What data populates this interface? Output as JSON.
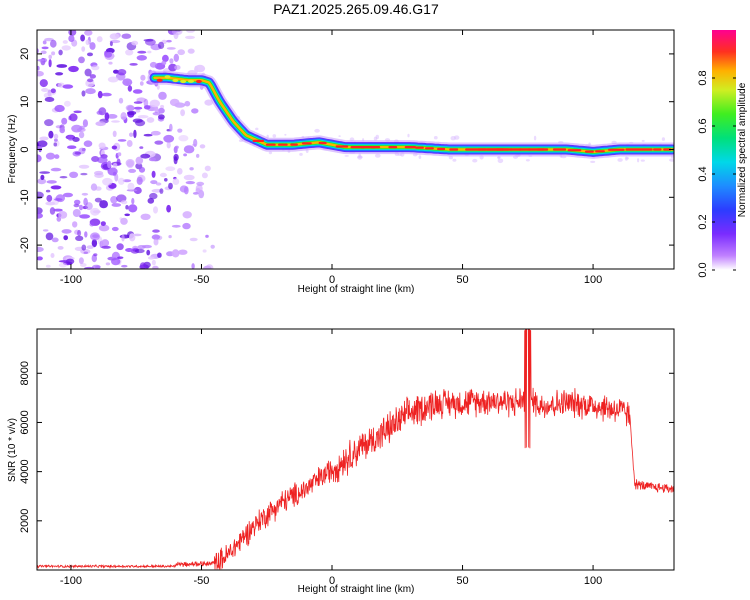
{
  "title": "PAZ1.2025.265.09.46.G17",
  "colors": {
    "snr_line": "#ee2222",
    "colormap": [
      "#ffffff",
      "#9b30ff",
      "#3a2cff",
      "#1e6bff",
      "#00c8ff",
      "#00e0a0",
      "#22ee22",
      "#d8ee22",
      "#ffaa00",
      "#ff2222",
      "#ff0090"
    ]
  },
  "chart_data": [
    {
      "type": "heatmap",
      "xlabel": "Height of straight line (km)",
      "ylabel": "Frequency (Hz)",
      "xlim": [
        -113,
        131
      ],
      "ylim": [
        -25,
        25
      ],
      "xticks": [
        -100,
        -50,
        0,
        50,
        100
      ],
      "yticks": [
        -20,
        -10,
        0,
        10,
        20
      ],
      "colorbar": {
        "label": "Normalized spectral amplitude",
        "range": [
          0,
          1
        ],
        "ticks": [
          0.0,
          0.2,
          0.4,
          0.6,
          0.8
        ]
      },
      "ridge": {
        "x": [
          -68,
          -63,
          -55,
          -50,
          -47,
          -43,
          -38,
          -33,
          -29,
          -25,
          -15,
          -5,
          5,
          15,
          30,
          45,
          60,
          75,
          90,
          100,
          110,
          120,
          131
        ],
        "y": [
          15,
          15,
          14.5,
          14.5,
          14,
          10,
          6,
          3,
          2,
          1,
          1,
          1.5,
          0.5,
          0.5,
          0.5,
          0,
          0,
          0,
          0,
          -0.5,
          0,
          0,
          0
        ]
      },
      "noise_region_x": [
        -113,
        -45
      ]
    },
    {
      "type": "line",
      "xlabel": "Height of straight line (km)",
      "ylabel": "SNR (10 * v/v)",
      "xlim": [
        -113,
        131
      ],
      "ylim": [
        0,
        9800
      ],
      "xticks": [
        -100,
        -50,
        0,
        50,
        100
      ],
      "yticks": [
        2000,
        4000,
        6000,
        8000
      ],
      "series": [
        {
          "x": [
            -113,
            -60,
            -45,
            -40,
            -30,
            -20,
            -10,
            0,
            10,
            20,
            30,
            40,
            50,
            60,
            70,
            75,
            80,
            90,
            100,
            110,
            114,
            116,
            120,
            131
          ],
          "y": [
            150,
            150,
            200,
            600,
            1800,
            2700,
            3300,
            4100,
            4900,
            5600,
            6400,
            6800,
            6800,
            6900,
            6800,
            7000,
            6700,
            6800,
            6700,
            6500,
            6300,
            3500,
            3400,
            3300
          ]
        }
      ]
    }
  ]
}
